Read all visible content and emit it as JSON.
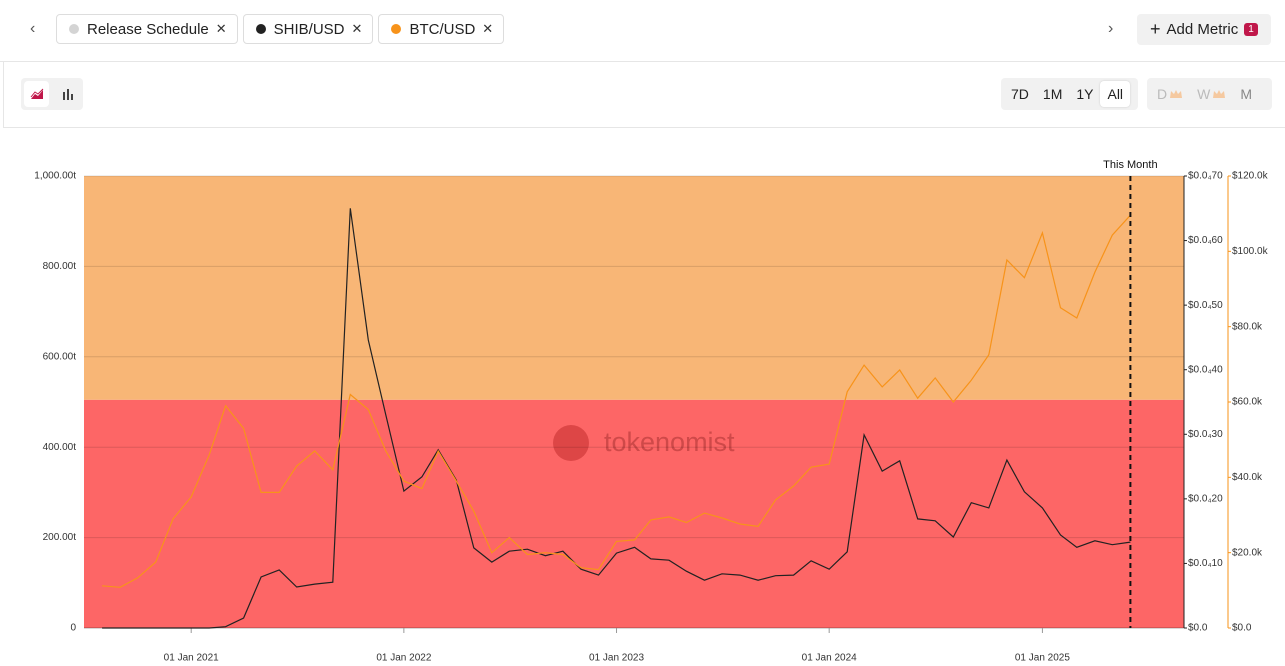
{
  "header": {
    "add_metric": {
      "label": "Add Metric",
      "count": 1
    }
  },
  "toolbar": {
    "ranges": [
      "7D",
      "1M",
      "1Y",
      "All"
    ],
    "selected_range": "All",
    "intervals": [
      "D",
      "W",
      "M"
    ]
  },
  "watermark": "tokenomist",
  "chart": {
    "type": "line",
    "xlim": [
      "2020-07-01",
      "2025-09-01"
    ],
    "xticks": [
      {
        "value": "2021-01-01",
        "label": "01 Jan 2021"
      },
      {
        "value": "2022-01-01",
        "label": "01 Jan 2022"
      },
      {
        "value": "2023-01-01",
        "label": "01 Jan 2023"
      },
      {
        "value": "2024-01-01",
        "label": "01 Jan 2024"
      },
      {
        "value": "2025-01-01",
        "label": "01 Jan 2025"
      }
    ],
    "ylim": [
      0,
      1000
    ],
    "yticks": [
      0,
      {
        "value": 200,
        "label": "200.00t"
      },
      {
        "value": 400,
        "label": "400.00t"
      },
      {
        "value": 600,
        "label": "600.00t"
      },
      {
        "value": 800,
        "label": "800.00t"
      },
      {
        "value": 1000,
        "label": "1,000.00t"
      }
    ],
    "y2lim": [
      0,
      7e-05
    ],
    "y2ticks": [
      {
        "value": 0,
        "label": "$0.0"
      },
      {
        "value": 1e-05,
        "label": "$0.0₄10"
      },
      {
        "value": 2e-05,
        "label": "$0.0₄20"
      },
      {
        "value": 3e-05,
        "label": "$0.0₄30"
      },
      {
        "value": 4e-05,
        "label": "$0.0₄40"
      },
      {
        "value": 5e-05,
        "label": "$0.0₄50"
      },
      {
        "value": 6e-05,
        "label": "$0.0₄60"
      },
      {
        "value": 7e-05,
        "label": "$0.0₄70"
      }
    ],
    "y3lim": [
      0,
      120000
    ],
    "y3ticks": [
      {
        "value": 0,
        "label": "$0.0"
      },
      {
        "value": 20000,
        "label": "$20.0k"
      },
      {
        "value": 40000,
        "label": "$40.0k"
      },
      {
        "value": 60000,
        "label": "$60.0k"
      },
      {
        "value": 80000,
        "label": "$80.0k"
      },
      {
        "value": 100000,
        "label": "$100.0k"
      },
      {
        "value": 120000,
        "label": "$120.0k"
      }
    ],
    "grid": true,
    "annotation": {
      "text": "This Month",
      "x": "2025-06-01"
    },
    "x": [
      "2020-08-01",
      "2020-09-01",
      "2020-10-01",
      "2020-11-01",
      "2020-12-01",
      "2021-01-01",
      "2021-02-01",
      "2021-03-01",
      "2021-04-01",
      "2021-05-01",
      "2021-06-01",
      "2021-07-01",
      "2021-08-01",
      "2021-09-01",
      "2021-10-01",
      "2021-11-01",
      "2021-12-01",
      "2022-01-01",
      "2022-02-01",
      "2022-03-01",
      "2022-04-01",
      "2022-05-01",
      "2022-06-01",
      "2022-07-01",
      "2022-08-01",
      "2022-09-01",
      "2022-10-01",
      "2022-11-01",
      "2022-12-01",
      "2023-01-01",
      "2023-02-01",
      "2023-03-01",
      "2023-04-01",
      "2023-05-01",
      "2023-06-01",
      "2023-07-01",
      "2023-08-01",
      "2023-09-01",
      "2023-10-01",
      "2023-11-01",
      "2023-12-01",
      "2024-01-01",
      "2024-02-01",
      "2024-03-01",
      "2024-04-01",
      "2024-05-01",
      "2024-06-01",
      "2024-07-01",
      "2024-08-01",
      "2024-09-01",
      "2024-10-01",
      "2024-11-01",
      "2024-12-01",
      "2025-01-01",
      "2025-02-01",
      "2025-03-01",
      "2025-04-01",
      "2025-05-01",
      "2025-06-01"
    ],
    "series": [
      {
        "name": "Release Schedule",
        "color": "#d4d4d4",
        "bands": [
          {
            "color": "#fd6666",
            "value": 505
          },
          {
            "color": "#f8b676",
            "value": 495
          }
        ]
      },
      {
        "name": "SHIB/USD",
        "color": "#222222",
        "axis": "y2",
        "values": [
          0,
          0,
          0,
          0,
          0,
          0,
          0,
          2e-07,
          1.55e-06,
          7.9e-06,
          9e-06,
          6.35e-06,
          6.8e-06,
          7.1e-06,
          6.5e-05,
          4.46e-05,
          3.3e-05,
          2.12e-05,
          2.34e-05,
          2.76e-05,
          2.29e-05,
          1.24e-05,
          1.02e-05,
          1.19e-05,
          1.22e-05,
          1.12e-05,
          1.19e-05,
          9.1e-06,
          8.2e-06,
          1.16e-05,
          1.25e-05,
          1.07e-05,
          1.05e-05,
          8.8e-06,
          7.4e-06,
          8.4e-06,
          8.2e-06,
          7.4e-06,
          8.1e-06,
          8.2e-06,
          1.04e-05,
          9.1e-06,
          1.18e-05,
          2.99e-05,
          2.43e-05,
          2.59e-05,
          1.69e-05,
          1.66e-05,
          1.41e-05,
          1.94e-05,
          1.86e-05,
          2.6e-05,
          2.11e-05,
          1.86e-05,
          1.44e-05,
          1.25e-05,
          1.35e-05,
          1.29e-05,
          1.33e-05
        ]
      },
      {
        "name": "BTC/USD",
        "color": "#f7931a",
        "axis": "y3",
        "values": [
          11200,
          10800,
          13300,
          17500,
          29000,
          34800,
          46000,
          59000,
          53000,
          36000,
          36000,
          43000,
          47000,
          42000,
          62000,
          58000,
          47000,
          39000,
          37000,
          47000,
          39000,
          31000,
          20000,
          24000,
          19500,
          20000,
          19500,
          16000,
          15500,
          23000,
          23400,
          28700,
          29500,
          28000,
          30500,
          29200,
          27600,
          27000,
          34000,
          37700,
          42700,
          43500,
          62700,
          69800,
          64000,
          68500,
          61000,
          66400,
          60000,
          65800,
          72500,
          97700,
          93000,
          104900,
          85000,
          82300,
          94500,
          104300,
          109600
        ]
      }
    ]
  }
}
